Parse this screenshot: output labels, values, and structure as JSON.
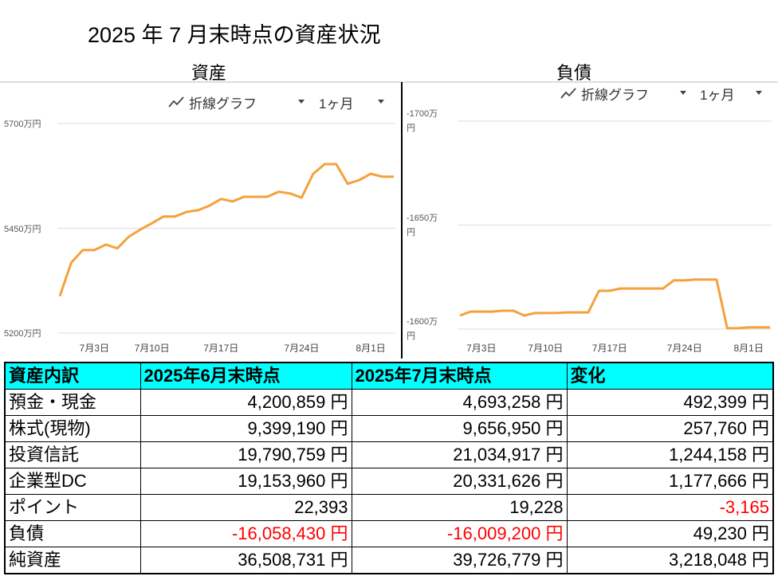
{
  "title": "2025 年 7 月末時点の資産状況",
  "chart_data": [
    {
      "type": "line",
      "title": "資産",
      "chart_type_menu": "折線グラフ",
      "period_menu": "1ヶ月",
      "categories": [
        null,
        null,
        null,
        "7月3日",
        null,
        null,
        null,
        null,
        "7月10日",
        null,
        null,
        null,
        null,
        null,
        "7月17日",
        null,
        null,
        null,
        null,
        null,
        null,
        "7月24日",
        null,
        null,
        null,
        null,
        null,
        "8月1日",
        null,
        null
      ],
      "series": [
        {
          "color": "#f5a03c",
          "values": [
            5288,
            5368,
            5398,
            5398,
            5411,
            5402,
            5430,
            5447,
            5462,
            5478,
            5478,
            5489,
            5493,
            5504,
            5520,
            5514,
            5525,
            5525,
            5525,
            5537,
            5533,
            5523,
            5580,
            5603,
            5603,
            5556,
            5565,
            5580,
            5573,
            5573
          ]
        }
      ],
      "ylim": [
        5200,
        5700
      ],
      "yticks": [
        {
          "value": 5200,
          "label": "5200万円"
        },
        {
          "value": 5450,
          "label": "5450万円"
        },
        {
          "value": 5700,
          "label": "5700万円"
        }
      ],
      "grid": true
    },
    {
      "type": "line",
      "title": "負債",
      "chart_type_menu": "折線グラフ",
      "period_menu": "1ヶ月",
      "categories": [
        null,
        null,
        "7月3日",
        null,
        null,
        null,
        null,
        null,
        "7月10日",
        null,
        null,
        null,
        null,
        null,
        "7月17日",
        null,
        null,
        null,
        null,
        null,
        null,
        "7月24日",
        null,
        null,
        null,
        null,
        null,
        "8月1日",
        null,
        null
      ],
      "series": [
        {
          "color": "#f5a03c",
          "values": [
            -1606.5,
            -1608.4,
            -1608.4,
            -1608.4,
            -1608.8,
            -1608.8,
            -1606.5,
            -1607.7,
            -1607.7,
            -1607.7,
            -1608.0,
            -1608.0,
            -1608.0,
            -1618.4,
            -1618.4,
            -1619.5,
            -1619.5,
            -1619.5,
            -1619.5,
            -1619.5,
            -1623.4,
            -1623.4,
            -1623.8,
            -1623.8,
            -1623.8,
            -1600.4,
            -1600.4,
            -1600.8,
            -1600.8,
            -1600.8
          ]
        }
      ],
      "ylim": [
        -1600,
        -1700
      ],
      "yticks": [
        {
          "value": -1600,
          "label": "-1600万円"
        },
        {
          "value": -1650,
          "label": "-1650万円"
        },
        {
          "value": -1700,
          "label": "-1700万円"
        }
      ],
      "grid": true
    }
  ],
  "table": {
    "header": [
      "資産内訳",
      "2025年6月末時点",
      "2025年7月末時点",
      "変化"
    ],
    "rows": [
      [
        "預金・現金",
        "4,200,859 円",
        "4,693,258 円",
        "492,399 円"
      ],
      [
        "株式(現物)",
        "9,399,190 円",
        "9,656,950 円",
        "257,760 円"
      ],
      [
        "投資信託",
        "19,790,759 円",
        "21,034,917 円",
        "1,244,158 円"
      ],
      [
        "企業型DC",
        "19,153,960 円",
        "20,331,626 円",
        "1,177,666 円"
      ],
      [
        "ポイント",
        "22,393",
        "19,228",
        "-3,165"
      ],
      [
        "負債",
        "-16,058,430 円",
        "-16,009,200 円",
        "49,230 円"
      ],
      [
        "純資産",
        "36,508,731 円",
        "39,726,779 円",
        "3,218,048 円"
      ]
    ]
  }
}
